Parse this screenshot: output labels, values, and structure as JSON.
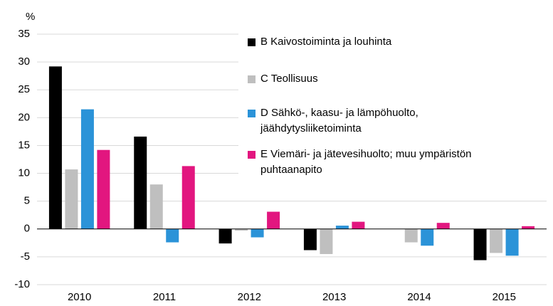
{
  "chart_data": {
    "type": "bar",
    "y_label": "%",
    "categories": [
      "2010",
      "2011",
      "2012",
      "2013",
      "2014",
      "2015"
    ],
    "series": [
      {
        "name": "B Kaivostoiminta ja louhinta",
        "color": "#000000",
        "values": [
          29.2,
          16.6,
          -2.6,
          -3.8,
          0,
          -5.6
        ]
      },
      {
        "name": "C Teollisuus",
        "color": "#bfbfbf",
        "values": [
          10.7,
          8.0,
          -0.3,
          -4.5,
          -2.4,
          -4.3
        ]
      },
      {
        "name": "D Sähkö-, kaasu- ja lämpöhuolto,\njäähdytysliiketoiminta",
        "color": "#2b93d8",
        "values": [
          21.5,
          -2.4,
          -1.5,
          0.6,
          -3.0,
          -4.8
        ]
      },
      {
        "name": "E Viemäri- ja jätevesihuolto; muu ympäristön\npuhtaanapito",
        "color": "#e2167f",
        "values": [
          14.2,
          11.3,
          3.1,
          1.3,
          1.1,
          0.5
        ]
      }
    ],
    "ylim": [
      -10,
      35
    ],
    "yticks": [
      -10,
      -5,
      0,
      5,
      10,
      15,
      20,
      25,
      30,
      35
    ],
    "grid": true,
    "legend": "upper right"
  }
}
